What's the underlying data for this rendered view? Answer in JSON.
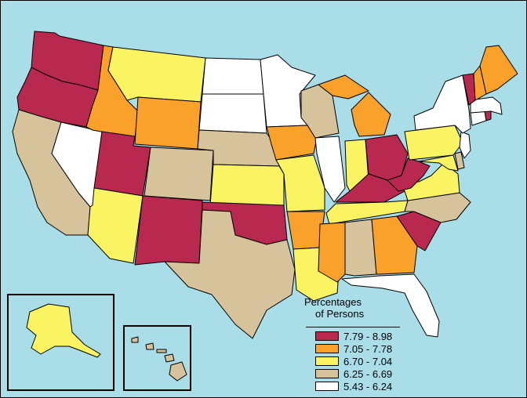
{
  "legend": {
    "title_line1": "Percentages",
    "title_line2": "of Persons",
    "classes": [
      {
        "label": "7.79 - 8.98",
        "color": "#b8284f"
      },
      {
        "label": "7.05 - 7.78",
        "color": "#f9a12b"
      },
      {
        "label": "6.70 - 7.04",
        "color": "#fbf462"
      },
      {
        "label": "6.25 - 6.69",
        "color": "#d7c39b"
      },
      {
        "label": "5.43 - 6.24",
        "color": "#ffffff"
      }
    ]
  },
  "colors": {
    "water": "#a9dde8",
    "c1": "#b8284f",
    "c2": "#f9a12b",
    "c3": "#fbf462",
    "c4": "#d7c39b",
    "c5": "#ffffff"
  },
  "states": {
    "WA": 1,
    "OR": 1,
    "UT": 1,
    "NM": 1,
    "OK": 1,
    "OH": 1,
    "WV": 1,
    "KY": 1,
    "SC": 1,
    "VT": 1,
    "RI": 1,
    "ID": 2,
    "WY": 2,
    "IA": 2,
    "AR": 2,
    "MS": 2,
    "GA": 2,
    "MI": 2,
    "ME": 2,
    "NH": 2,
    "MT": 3,
    "AZ": 3,
    "KS": 3,
    "MO": 3,
    "IN": 3,
    "TN": 3,
    "LA": 3,
    "VA": 3,
    "PA": 3,
    "MD": 3,
    "AK": 3,
    "CA": 4,
    "CO": 4,
    "NE": 4,
    "TX": 4,
    "WI": 4,
    "AL": 4,
    "NC": 4,
    "DE": 4,
    "HI": 4,
    "NV": 5,
    "ND": 5,
    "SD": 5,
    "MN": 5,
    "IL": 5,
    "NY": 5,
    "FL": 5,
    "MA": 5,
    "CT": 5,
    "NJ": 5
  }
}
